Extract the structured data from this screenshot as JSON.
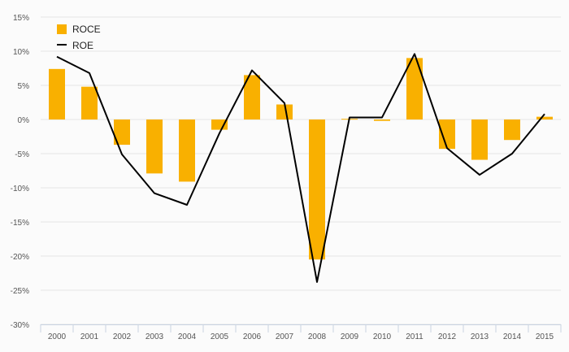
{
  "chart_data": {
    "type": "bar",
    "categories": [
      "2000",
      "2001",
      "2002",
      "2003",
      "2004",
      "2005",
      "2006",
      "2007",
      "2008",
      "2009",
      "2010",
      "2011",
      "2012",
      "2013",
      "2014",
      "2015"
    ],
    "series": [
      {
        "name": "ROCE",
        "type": "bar",
        "color": "#f9b000",
        "values": [
          7.4,
          4.8,
          -3.7,
          -7.9,
          -9.1,
          -1.5,
          6.5,
          2.2,
          -20.5,
          0.1,
          -0.2,
          9.0,
          -4.3,
          -5.9,
          -3.0,
          0.4
        ]
      },
      {
        "name": "ROE",
        "type": "line",
        "color": "#000000",
        "values": [
          9.2,
          6.8,
          -5.1,
          -10.8,
          -12.5,
          -2.0,
          7.2,
          2.4,
          -23.8,
          0.3,
          0.3,
          9.6,
          -4.2,
          -8.1,
          -5.0,
          0.8
        ]
      }
    ],
    "title": "",
    "xlabel": "",
    "ylabel": "",
    "ylim": [
      -30,
      15
    ],
    "yticks": [
      "15%",
      "10%",
      "5%",
      "0%",
      "-5%",
      "-10%",
      "-15%",
      "-20%",
      "-25%",
      "-30%"
    ],
    "grid": "horizontal",
    "legend": "top-left"
  }
}
